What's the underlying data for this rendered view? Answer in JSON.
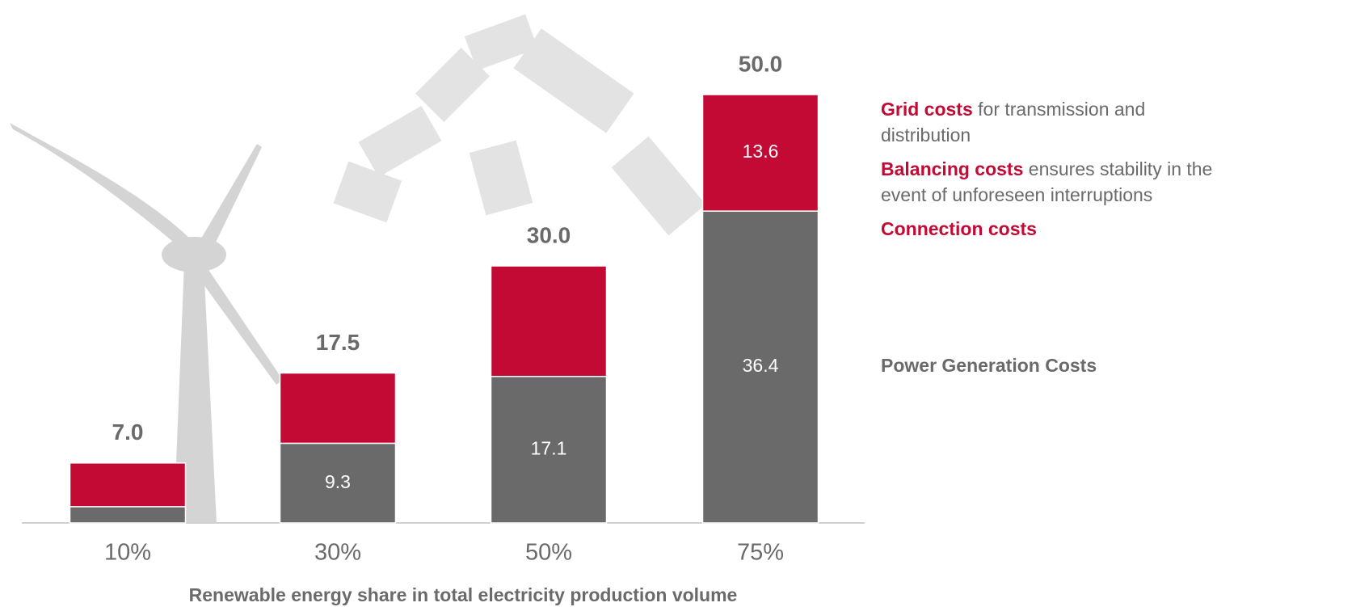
{
  "chart_data": {
    "type": "stacked_bar",
    "x_label": "Renewable energy share in total electricity production volume",
    "categories": [
      "10%",
      "30%",
      "50%",
      "75%"
    ],
    "ylim": [
      0,
      50
    ],
    "series": [
      {
        "name": "Power Generation Costs",
        "color": "#6a6a6a",
        "values": [
          1.9,
          9.3,
          17.1,
          36.4
        ],
        "show_value_labels": [
          false,
          true,
          true,
          true
        ]
      },
      {
        "color": "#c20a35",
        "values": [
          5.1,
          8.2,
          12.9,
          13.6
        ],
        "show_value_labels": [
          false,
          false,
          false,
          true
        ],
        "legend_items": [
          {
            "bold": "Grid costs",
            "text": "for transmission and distribution"
          },
          {
            "bold": "Balancing costs",
            "text": "ensures stability in the event of unforeseen interruptions"
          },
          {
            "bold": "Connection costs"
          }
        ]
      }
    ],
    "totals": {
      "values": [
        7.0,
        17.5,
        30.0,
        50.0
      ],
      "value_labels": [
        "7.0",
        "17.5",
        "30.0",
        "50.0"
      ]
    }
  }
}
